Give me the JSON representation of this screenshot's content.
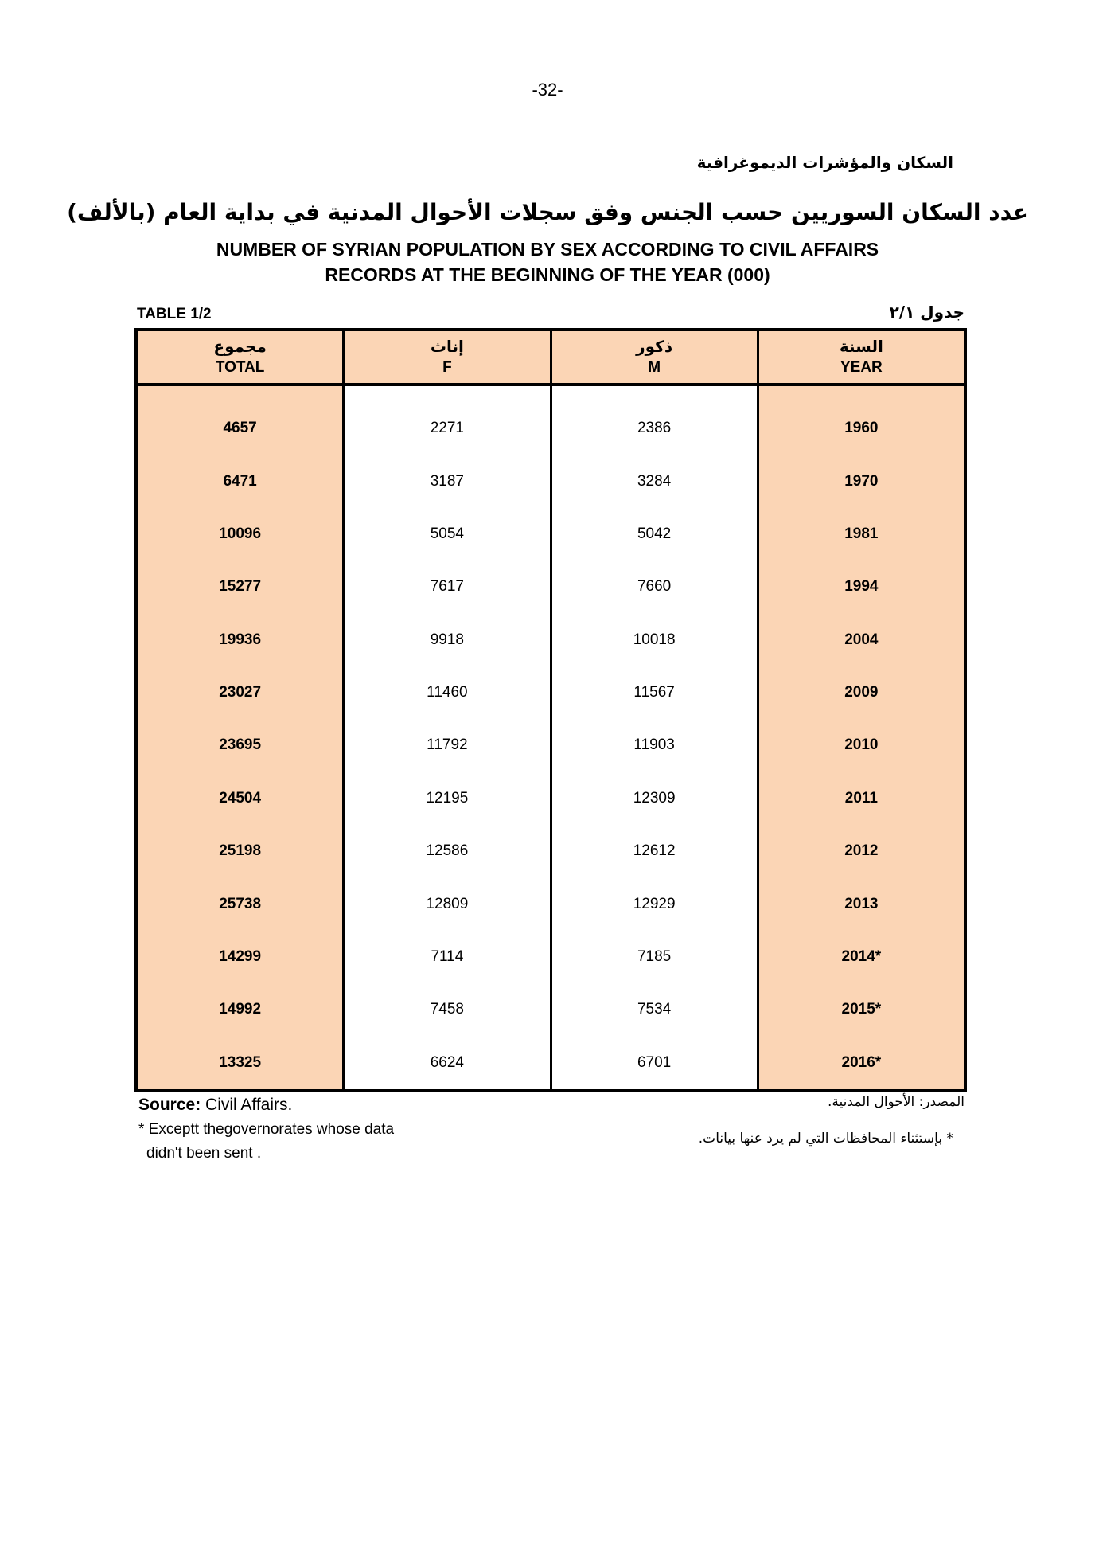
{
  "page_number": "-32-",
  "section_ar": "السكان والمؤشرات الديموغرافية",
  "title_ar": "عدد السكان السوريين حسب الجنس وفق سجلات الأحوال المدنية في بداية العام (بالألف)",
  "title_en_line1": "NUMBER OF SYRIAN POPULATION BY SEX ACCORDING TO CIVIL AFFAIRS",
  "title_en_line2": "RECORDS AT THE BEGINNING OF THE YEAR (000)",
  "table_label_en": "TABLE  1/2",
  "table_label_ar": "جدول ٢/١",
  "colors": {
    "highlight": "#fbd5b5",
    "border": "#000000"
  },
  "table": {
    "columns": [
      {
        "ar": "مجموع",
        "en": "TOTAL"
      },
      {
        "ar": "إناث",
        "en": "F"
      },
      {
        "ar": "ذكور",
        "en": "M"
      },
      {
        "ar": "السنة",
        "en": "YEAR"
      }
    ],
    "total": [
      "4657",
      "6471",
      "10096",
      "15277",
      "19936",
      "23027",
      "23695",
      "24504",
      "25198",
      "25738",
      "14299",
      "14992",
      "13325"
    ],
    "f": [
      "2271",
      "3187",
      "5054",
      "7617",
      "9918",
      "11460",
      "11792",
      "12195",
      "12586",
      "12809",
      "7114",
      "7458",
      "6624"
    ],
    "m": [
      "2386",
      "3284",
      "5042",
      "7660",
      "10018",
      "11567",
      "11903",
      "12309",
      "12612",
      "12929",
      "7185",
      "7534",
      "6701"
    ],
    "year": [
      "1960",
      "1970",
      "1981",
      "1994",
      "2004",
      "2009",
      "2010",
      "2011",
      "2012",
      "2013",
      "2014*",
      "2015*",
      "2016*"
    ]
  },
  "source_label": "Source:",
  "source_value": " Civil Affairs.",
  "source_ar": "المصدر: الأحوال المدنية.",
  "note_en_line1": "* Exceptt thegovernorates whose data",
  "note_en_line2": "didn't been sent .",
  "note_ar": "* بإستثناء المحافظات التي لم يرد عنها بيانات."
}
